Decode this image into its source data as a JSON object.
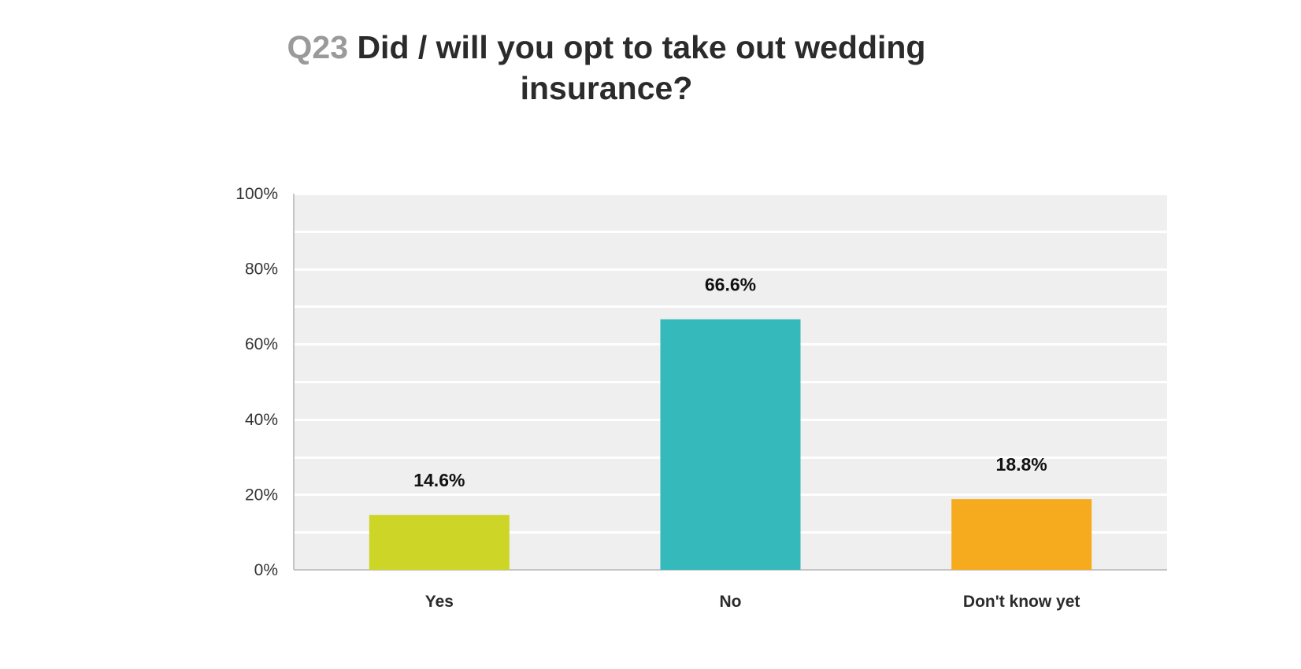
{
  "chart_data": {
    "type": "bar",
    "title_prefix": "Q23",
    "title": "Did / will you opt to take out wedding insurance?",
    "categories": [
      "Yes",
      "No",
      "Don't know yet"
    ],
    "values": [
      14.6,
      66.6,
      18.8
    ],
    "data_labels": [
      "14.6%",
      "66.6%",
      "18.8%"
    ],
    "colors": [
      "#cdd526",
      "#36b9bb",
      "#f6ab1f"
    ],
    "ylim": [
      0,
      100
    ],
    "yticks": [
      0,
      20,
      40,
      60,
      80,
      100
    ],
    "ytick_labels": [
      "0%",
      "20%",
      "40%",
      "60%",
      "80%",
      "100%"
    ],
    "grid": true,
    "plot_background": "#efefef",
    "legend": "none"
  }
}
